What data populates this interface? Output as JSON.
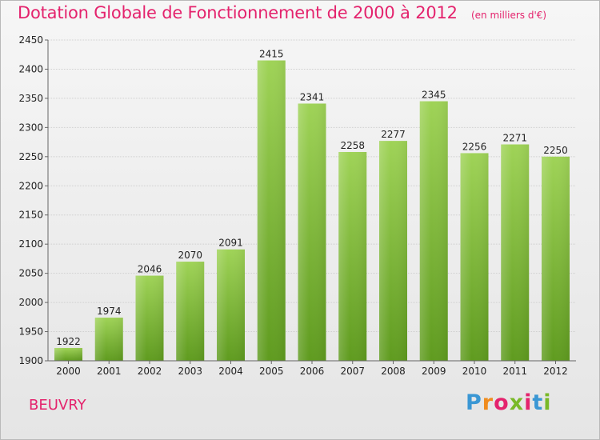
{
  "header": {
    "title": "Dotation Globale de Fonctionnement de 2000 à 2012",
    "subtitle": "(en milliers d'€)"
  },
  "commune": "BEUVRY",
  "logo": {
    "text": "Proxiti",
    "letters": [
      "P",
      "r",
      "o",
      "x",
      "i",
      "t",
      "i"
    ],
    "colors": [
      "#3a97d4",
      "#f08c1e",
      "#e4236d",
      "#79b928",
      "#e4236d",
      "#3a97d4",
      "#79b928"
    ]
  },
  "colors": {
    "title": "#e4236d",
    "bar_light": "#9fd357",
    "bar_dark": "#5f9b1f",
    "axis": "#666666",
    "grid": "#cfcfcf"
  },
  "chart_data": {
    "type": "bar",
    "categories": [
      "2000",
      "2001",
      "2002",
      "2003",
      "2004",
      "2005",
      "2006",
      "2007",
      "2008",
      "2009",
      "2010",
      "2011",
      "2012"
    ],
    "values": [
      1922,
      1974,
      2046,
      2070,
      2091,
      2415,
      2341,
      2258,
      2277,
      2345,
      2256,
      2271,
      2250
    ],
    "title": "Dotation Globale de Fonctionnement de 2000 à 2012",
    "subtitle": "(en milliers d'€)",
    "xlabel": "",
    "ylabel": "",
    "ylim": [
      1900,
      2450
    ],
    "yticks": [
      1900,
      1950,
      2000,
      2050,
      2100,
      2150,
      2200,
      2250,
      2300,
      2350,
      2400,
      2450
    ],
    "grid": true,
    "data_labels": true
  }
}
